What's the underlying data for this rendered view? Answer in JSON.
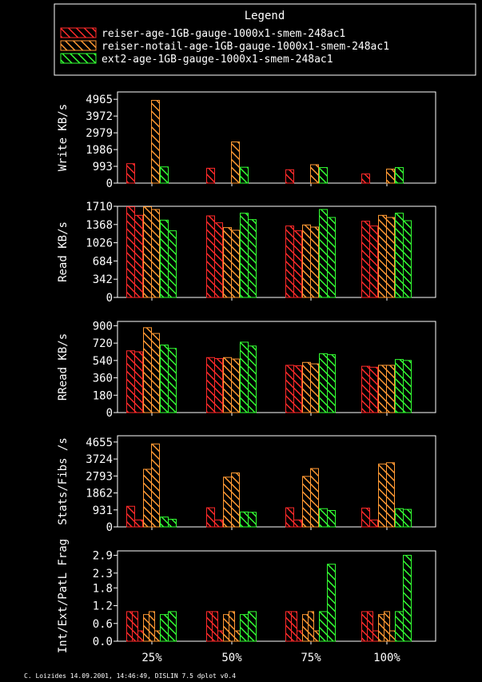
{
  "legend": {
    "title": "Legend",
    "items": [
      {
        "label": "reiser-age-1GB-gauge-1000x1-smem-248ac1",
        "color": "#ff2a2a",
        "pattern": "hatch-red"
      },
      {
        "label": "reiser-notail-age-1GB-gauge-1000x1-smem-248ac1",
        "color": "#ff9933",
        "pattern": "hatch-orange"
      },
      {
        "label": "ext2-age-1GB-gauge-1000x1-smem-248ac1",
        "color": "#33ff33",
        "pattern": "hatch-green"
      }
    ]
  },
  "footer": "C. Loizides 14.09.2001, 14:46:49, DISLIN 7.5 dplot v0.4",
  "chart_data": [
    {
      "type": "bar",
      "ylabel": "Write KB/s",
      "categories": [
        "25%",
        "50%",
        "75%",
        "100%"
      ],
      "yticks": [
        "0",
        "993",
        "1986",
        "2979",
        "3972",
        "4965"
      ],
      "ylim": [
        0,
        5400
      ],
      "series": [
        {
          "name": "reiser-age-1GB-gauge-1000x1-smem-248ac1",
          "values": [
            [
              1150,
              0
            ],
            [
              880,
              0
            ],
            [
              790,
              0
            ],
            [
              540,
              0
            ]
          ]
        },
        {
          "name": "reiser-notail-age-1GB-gauge-1000x1-smem-248ac1",
          "values": [
            [
              0,
              4900
            ],
            [
              0,
              2440
            ],
            [
              0,
              1090
            ],
            [
              0,
              830
            ]
          ]
        },
        {
          "name": "ext2-age-1GB-gauge-1000x1-smem-248ac1",
          "values": [
            [
              960,
              0
            ],
            [
              940,
              0
            ],
            [
              920,
              0
            ],
            [
              920,
              0
            ]
          ]
        }
      ]
    },
    {
      "type": "bar",
      "ylabel": "Read KB/s",
      "categories": [
        "25%",
        "50%",
        "75%",
        "100%"
      ],
      "yticks": [
        "0",
        "342",
        "684",
        "1026",
        "1368",
        "1710"
      ],
      "ylim": [
        0,
        1710
      ],
      "series": [
        {
          "name": "reiser-age-1GB-gauge-1000x1-smem-248ac1",
          "values": [
            [
              1700,
              1540
            ],
            [
              1530,
              1400
            ],
            [
              1340,
              1250
            ],
            [
              1430,
              1340
            ]
          ]
        },
        {
          "name": "reiser-notail-age-1GB-gauge-1000x1-smem-248ac1",
          "values": [
            [
              1700,
              1650
            ],
            [
              1310,
              1260
            ],
            [
              1360,
              1320
            ],
            [
              1540,
              1500
            ]
          ]
        },
        {
          "name": "ext2-age-1GB-gauge-1000x1-smem-248ac1",
          "values": [
            [
              1450,
              1250
            ],
            [
              1580,
              1460
            ],
            [
              1650,
              1500
            ],
            [
              1580,
              1440
            ]
          ]
        }
      ]
    },
    {
      "type": "bar",
      "ylabel": "RRead KB/s",
      "categories": [
        "25%",
        "50%",
        "75%",
        "100%"
      ],
      "yticks": [
        "0",
        "180",
        "360",
        "540",
        "720",
        "900"
      ],
      "ylim": [
        0,
        945
      ],
      "series": [
        {
          "name": "reiser-age-1GB-gauge-1000x1-smem-248ac1",
          "values": [
            [
              640,
              630
            ],
            [
              570,
              560
            ],
            [
              490,
              485
            ],
            [
              480,
              470
            ]
          ]
        },
        {
          "name": "reiser-notail-age-1GB-gauge-1000x1-smem-248ac1",
          "values": [
            [
              880,
              820
            ],
            [
              570,
              555
            ],
            [
              520,
              505
            ],
            [
              490,
              490
            ]
          ]
        },
        {
          "name": "ext2-age-1GB-gauge-1000x1-smem-248ac1",
          "values": [
            [
              700,
              665
            ],
            [
              730,
              690
            ],
            [
              610,
              600
            ],
            [
              550,
              540
            ]
          ]
        }
      ]
    },
    {
      "type": "bar",
      "ylabel": "Stats/Fibs /s",
      "categories": [
        "25%",
        "50%",
        "75%",
        "100%"
      ],
      "yticks": [
        "0",
        "931",
        "1862",
        "2793",
        "3724",
        "4655"
      ],
      "ylim": [
        0,
        5000
      ],
      "series": [
        {
          "name": "reiser-age-1GB-gauge-1000x1-smem-248ac1",
          "values": [
            [
              1130,
              380
            ],
            [
              1050,
              380
            ],
            [
              1050,
              380
            ],
            [
              1030,
              380
            ]
          ]
        },
        {
          "name": "reiser-notail-age-1GB-gauge-1000x1-smem-248ac1",
          "values": [
            [
              3160,
              4550
            ],
            [
              2730,
              2960
            ],
            [
              2770,
              3200
            ],
            [
              3450,
              3520
            ]
          ]
        },
        {
          "name": "ext2-age-1GB-gauge-1000x1-smem-248ac1",
          "values": [
            [
              540,
              420
            ],
            [
              820,
              800
            ],
            [
              1000,
              900
            ],
            [
              1000,
              960
            ]
          ]
        }
      ]
    },
    {
      "type": "bar",
      "ylabel": "Int/Ext/PatL Frag",
      "categories": [
        "25%",
        "50%",
        "75%",
        "100%"
      ],
      "yticks": [
        "0.0",
        "0.6",
        "1.2",
        "1.8",
        "2.3",
        "2.9"
      ],
      "ylim": [
        0,
        3.05
      ],
      "series": [
        {
          "name": "reiser-age-1GB-gauge-1000x1-smem-248ac1",
          "values": [
            [
              1.0,
              1.0,
              0.35
            ],
            [
              1.0,
              1.0,
              0.35
            ],
            [
              1.0,
              1.0,
              0.35
            ],
            [
              1.0,
              1.0,
              0.35
            ]
          ]
        },
        {
          "name": "reiser-notail-age-1GB-gauge-1000x1-smem-248ac1",
          "values": [
            [
              0.9,
              1.0,
              0.35
            ],
            [
              0.9,
              1.0,
              0.35
            ],
            [
              0.9,
              1.0,
              0.35
            ],
            [
              0.9,
              1.0,
              0.35
            ]
          ]
        },
        {
          "name": "ext2-age-1GB-gauge-1000x1-smem-248ac1",
          "values": [
            [
              0.9,
              1.0
            ],
            [
              0.9,
              1.0
            ],
            [
              1.0,
              2.6
            ],
            [
              1.0,
              2.9
            ]
          ]
        }
      ]
    }
  ]
}
